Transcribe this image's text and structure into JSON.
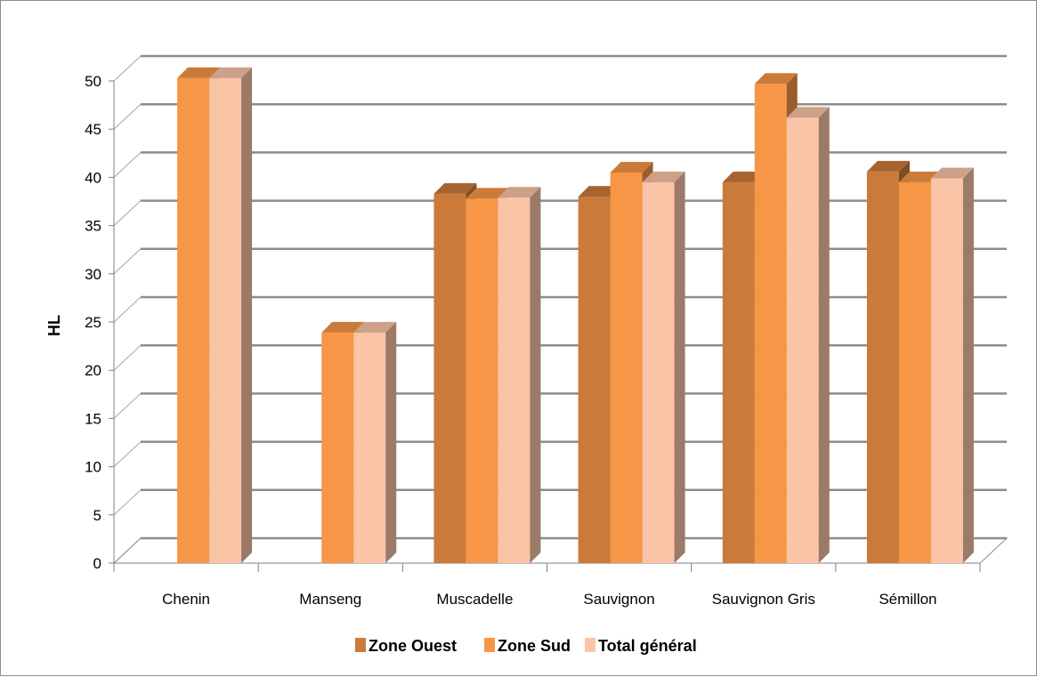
{
  "chart_data": {
    "type": "bar",
    "style": "3d-clustered-column",
    "categories": [
      "Chenin",
      "Manseng",
      "Muscadelle",
      "Sauvignon",
      "Sauvignon Gris",
      "Sémillon"
    ],
    "series": [
      {
        "name": "Zone Ouest",
        "color": "#cc7a3a",
        "values": [
          null,
          null,
          38.3,
          38.0,
          39.5,
          40.6
        ]
      },
      {
        "name": "Zone Sud",
        "color": "#f79646",
        "values": [
          50.3,
          23.9,
          37.8,
          40.5,
          49.7,
          39.5
        ]
      },
      {
        "name": "Total général",
        "color": "#fac4a6",
        "values": [
          50.3,
          23.9,
          37.9,
          39.5,
          46.2,
          39.9
        ]
      }
    ],
    "ylabel": "HL",
    "xlabel": "",
    "ylim": [
      0,
      50
    ],
    "yticks": [
      0,
      5,
      10,
      15,
      20,
      25,
      30,
      35,
      40,
      45,
      50
    ],
    "grid": true,
    "legend_position": "bottom"
  }
}
